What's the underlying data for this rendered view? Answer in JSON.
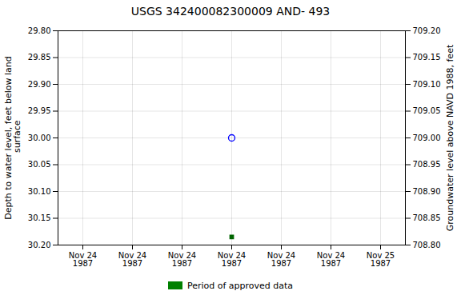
{
  "chart_data": {
    "type": "scatter",
    "title": "USGS 342400082300009 AND- 493",
    "y_label": "Depth to water level, feet below land\n surface",
    "y2_label": "Groundwater level above NAVD 1988, feet",
    "categories": [
      "Nov 24\n1987",
      "Nov 24\n1987",
      "Nov 24\n1987",
      "Nov 24\n1987",
      "Nov 24\n1987",
      "Nov 24\n1987",
      "Nov 25\n1987"
    ],
    "series": [
      {
        "color": "#0000FF",
        "marker": "open_circle",
        "values": [
          null,
          null,
          null,
          30.0,
          null,
          null,
          null
        ]
      },
      {
        "color": "#006400",
        "marker": "square",
        "values": [
          null,
          null,
          null,
          30.185,
          null,
          null,
          null
        ]
      },
      {
        "name": "Period of approved data",
        "type": "bar",
        "color": "#008000",
        "values": [
          null,
          null,
          null,
          null,
          null,
          null,
          null
        ]
      }
    ],
    "ylim": [
      30.2,
      29.8
    ],
    "yticks": [
      {
        "value": 29.8,
        "label": "29.80"
      },
      29.85,
      {
        "value": 29.9,
        "label": "29.90"
      },
      29.95,
      {
        "value": 30.0,
        "label": "30.00"
      },
      30.05,
      {
        "value": 30.1,
        "label": "30.10"
      },
      30.15,
      {
        "value": 30.2,
        "label": "30.20"
      }
    ],
    "y2lim": [
      708.8,
      709.2
    ],
    "y2ticks": [
      {
        "value": 709.2,
        "label": "709.20"
      },
      709.15,
      {
        "value": 709.1,
        "label": "709.10"
      },
      709.05,
      {
        "value": 709.0,
        "label": "709.00"
      },
      708.95,
      {
        "value": 708.9,
        "label": "708.90"
      },
      708.85,
      {
        "value": 708.8,
        "label": "708.80"
      }
    ],
    "grid": true,
    "legend": "bottom"
  }
}
